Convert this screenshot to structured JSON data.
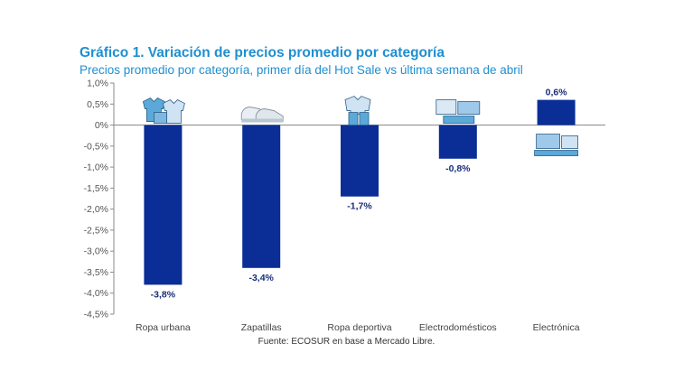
{
  "title": "Gráfico 1. Variación de precios promedio por categoría",
  "subtitle": "Precios promedio por categoría, primer día del Hot Sale vs última semana de abril",
  "source": "Fuente: ECOSUR en base a Mercado Libre.",
  "colors": {
    "bar": "#0a2e96",
    "title": "#1f8fd0",
    "icon": "#5aa9d9"
  },
  "chart_data": {
    "type": "bar",
    "categories": [
      "Ropa urbana",
      "Zapatillas",
      "Ropa deportiva",
      "Electrodomésticos",
      "Electrónica"
    ],
    "values": [
      -3.8,
      -3.4,
      -1.7,
      -0.8,
      0.6
    ],
    "data_labels": [
      "-3,8%",
      "-3,4%",
      "-1,7%",
      "-0,8%",
      "0,6%"
    ],
    "yticks": [
      "1,0%",
      "0,5%",
      "0%",
      "-0,5%",
      "-1,0%",
      "-1,5%",
      "-2,0%",
      "-2,5%",
      "-3,0%",
      "-3,5%",
      "-4,0%",
      "-4,5%"
    ],
    "ylim": [
      -4.5,
      1.0
    ],
    "icons": [
      "clothing-icon",
      "sneakers-icon",
      "sportswear-icon",
      "appliances-icon",
      "electronics-icon"
    ],
    "grid": false,
    "legend": "none"
  }
}
